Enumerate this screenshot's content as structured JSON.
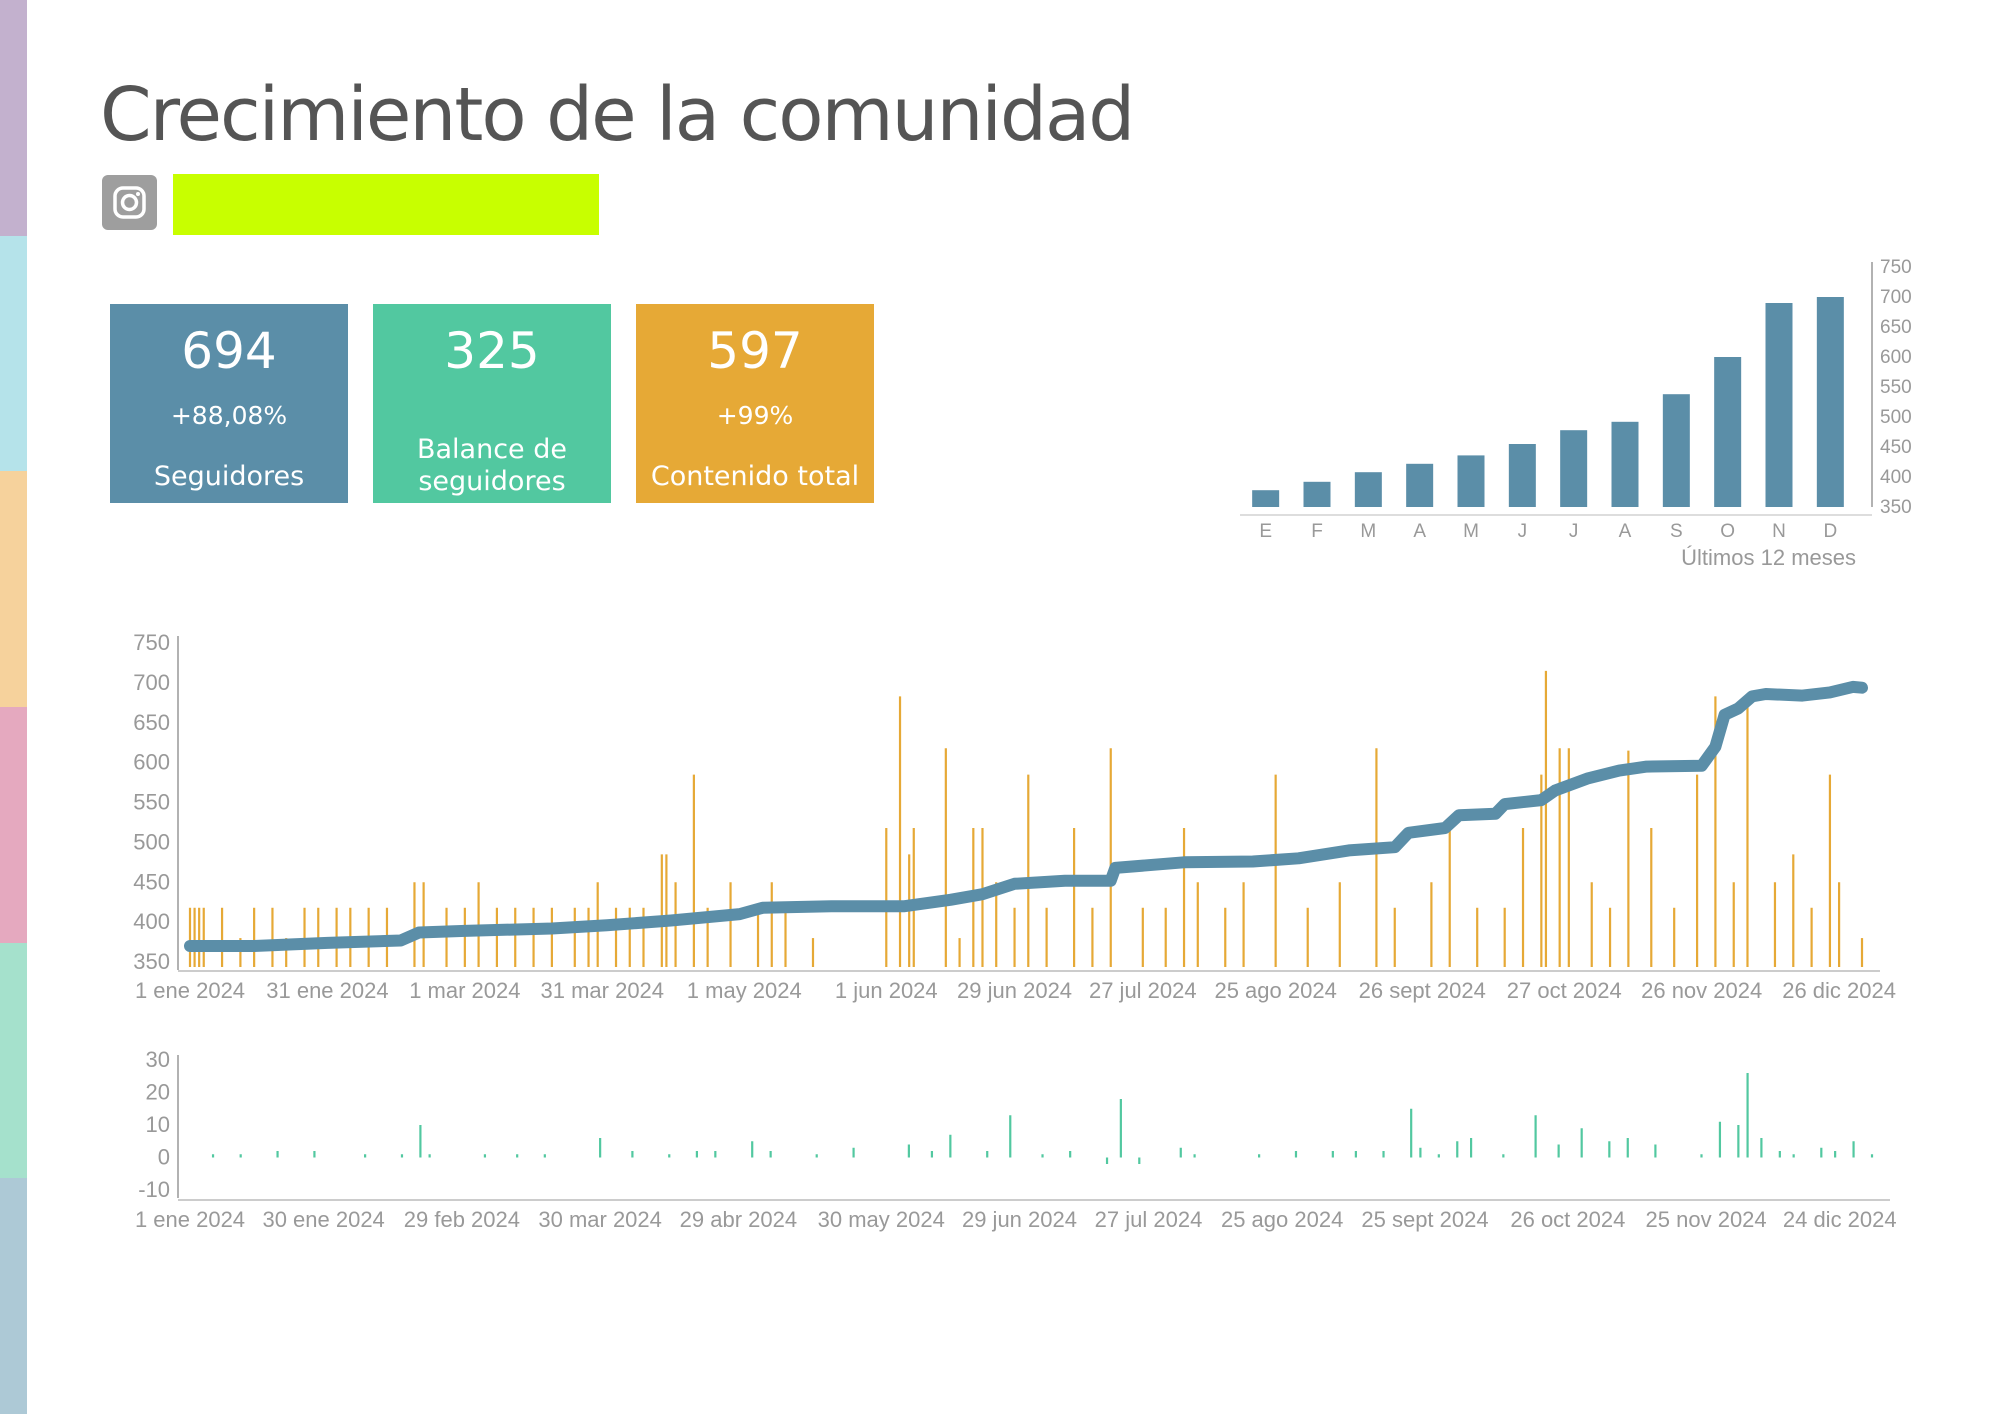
{
  "title": "Crecimiento de la comunidad",
  "network_icon": "instagram-icon",
  "colors": {
    "stripes": [
      "#c3b1ce",
      "#b5e3ea",
      "#f6d29c",
      "#e5a9bf",
      "#a5e1cc",
      "#adc9d6"
    ],
    "name_bar": "#c8ff00",
    "followers": "#5b8ea8",
    "balance": "#52c8a0",
    "content": "#e6a936",
    "axis_text": "#999999"
  },
  "kpis": [
    {
      "value": "694",
      "change": "+88,08%",
      "label": "Seguidores",
      "color": "#5b8ea8"
    },
    {
      "value": "325",
      "change": "",
      "label": "Balance de seguidores",
      "color": "#52c8a0"
    },
    {
      "value": "597",
      "change": "+99%",
      "label": "Contenido total",
      "color": "#e6a936"
    }
  ],
  "chart_data": [
    {
      "type": "bar",
      "categories": [
        "E",
        "F",
        "M",
        "A",
        "M",
        "J",
        "J",
        "A",
        "S",
        "O",
        "N",
        "D"
      ],
      "values": [
        378,
        392,
        408,
        422,
        436,
        455,
        478,
        492,
        538,
        600,
        690,
        700
      ],
      "xlabel": "Últimos 12 meses",
      "ylim": [
        350,
        750
      ],
      "yticks": [
        350,
        400,
        450,
        500,
        550,
        600,
        650,
        700,
        750
      ],
      "color": "#5b8ea8"
    },
    {
      "type": "line",
      "xlim": [
        "2024-01-01",
        "2024-12-31"
      ],
      "ylim": [
        350,
        750
      ],
      "yticks": [
        350,
        400,
        450,
        500,
        550,
        600,
        650,
        700,
        750
      ],
      "xticks": [
        {
          "date": "2024-01-01",
          "label": "1 ene 2024"
        },
        {
          "date": "2024-01-31",
          "label": "31 ene 2024"
        },
        {
          "date": "2024-03-01",
          "label": "1 mar 2024"
        },
        {
          "date": "2024-03-31",
          "label": "31 mar 2024"
        },
        {
          "date": "2024-05-01",
          "label": "1 may 2024"
        },
        {
          "date": "2024-06-01",
          "label": "1 jun 2024"
        },
        {
          "date": "2024-06-29",
          "label": "29 jun 2024"
        },
        {
          "date": "2024-07-27",
          "label": "27 jul 2024"
        },
        {
          "date": "2024-08-25",
          "label": "25 ago 2024"
        },
        {
          "date": "2024-09-26",
          "label": "26 sept 2024"
        },
        {
          "date": "2024-10-27",
          "label": "27 oct 2024"
        },
        {
          "date": "2024-11-26",
          "label": "26 nov 2024"
        },
        {
          "date": "2024-12-26",
          "label": "26 dic 2024"
        }
      ],
      "series": [
        {
          "type": "line",
          "color": "#5b8ea8",
          "points": [
            [
              "2024-01-01",
              370
            ],
            [
              "2024-01-15",
              370
            ],
            [
              "2024-01-31",
              374
            ],
            [
              "2024-02-16",
              377
            ],
            [
              "2024-02-20",
              387
            ],
            [
              "2024-03-01",
              389
            ],
            [
              "2024-03-20",
              392
            ],
            [
              "2024-04-01",
              396
            ],
            [
              "2024-04-15",
              402
            ],
            [
              "2024-04-30",
              410
            ],
            [
              "2024-05-05",
              418
            ],
            [
              "2024-05-20",
              420
            ],
            [
              "2024-06-01",
              420
            ],
            [
              "2024-06-05",
              420
            ],
            [
              "2024-06-15",
              428
            ],
            [
              "2024-06-22",
              435
            ],
            [
              "2024-06-29",
              448
            ],
            [
              "2024-07-10",
              452
            ],
            [
              "2024-07-20",
              452
            ],
            [
              "2024-07-21",
              468
            ],
            [
              "2024-08-05",
              475
            ],
            [
              "2024-08-20",
              476
            ],
            [
              "2024-08-30",
              480
            ],
            [
              "2024-09-10",
              490
            ],
            [
              "2024-09-20",
              494
            ],
            [
              "2024-09-23",
              512
            ],
            [
              "2024-10-01",
              518
            ],
            [
              "2024-10-04",
              534
            ],
            [
              "2024-10-12",
              536
            ],
            [
              "2024-10-14",
              548
            ],
            [
              "2024-10-22",
              553
            ],
            [
              "2024-10-25",
              565
            ],
            [
              "2024-11-01",
              580
            ],
            [
              "2024-11-08",
              590
            ],
            [
              "2024-11-14",
              595
            ],
            [
              "2024-11-26",
              596
            ],
            [
              "2024-11-29",
              620
            ],
            [
              "2024-12-01",
              660
            ],
            [
              "2024-12-04",
              668
            ],
            [
              "2024-12-07",
              683
            ],
            [
              "2024-12-10",
              686
            ],
            [
              "2024-12-18",
              684
            ],
            [
              "2024-12-24",
              688
            ],
            [
              "2024-12-29",
              695
            ],
            [
              "2024-12-31",
              694
            ]
          ]
        },
        {
          "type": "bar",
          "color": "#e6a936",
          "points": [
            [
              "2024-01-01",
              418
            ],
            [
              "2024-01-02",
              418
            ],
            [
              "2024-01-03",
              418
            ],
            [
              "2024-01-04",
              418
            ],
            [
              "2024-01-08",
              418
            ],
            [
              "2024-01-12",
              380
            ],
            [
              "2024-01-15",
              418
            ],
            [
              "2024-01-19",
              418
            ],
            [
              "2024-01-22",
              380
            ],
            [
              "2024-01-26",
              418
            ],
            [
              "2024-01-29",
              418
            ],
            [
              "2024-02-02",
              418
            ],
            [
              "2024-02-05",
              418
            ],
            [
              "2024-02-09",
              418
            ],
            [
              "2024-02-13",
              418
            ],
            [
              "2024-02-19",
              450
            ],
            [
              "2024-02-21",
              450
            ],
            [
              "2024-02-26",
              418
            ],
            [
              "2024-03-01",
              418
            ],
            [
              "2024-03-04",
              450
            ],
            [
              "2024-03-08",
              418
            ],
            [
              "2024-03-12",
              418
            ],
            [
              "2024-03-16",
              418
            ],
            [
              "2024-03-20",
              418
            ],
            [
              "2024-03-25",
              418
            ],
            [
              "2024-03-28",
              418
            ],
            [
              "2024-03-30",
              450
            ],
            [
              "2024-04-03",
              418
            ],
            [
              "2024-04-06",
              418
            ],
            [
              "2024-04-09",
              418
            ],
            [
              "2024-04-13",
              485
            ],
            [
              "2024-04-14",
              485
            ],
            [
              "2024-04-16",
              450
            ],
            [
              "2024-04-20",
              585
            ],
            [
              "2024-04-23",
              418
            ],
            [
              "2024-04-28",
              450
            ],
            [
              "2024-05-04",
              418
            ],
            [
              "2024-05-07",
              450
            ],
            [
              "2024-05-10",
              418
            ],
            [
              "2024-05-16",
              380
            ],
            [
              "2024-06-01",
              518
            ],
            [
              "2024-06-04",
              683
            ],
            [
              "2024-06-06",
              485
            ],
            [
              "2024-06-07",
              518
            ],
            [
              "2024-06-14",
              618
            ],
            [
              "2024-06-17",
              380
            ],
            [
              "2024-06-20",
              518
            ],
            [
              "2024-06-22",
              518
            ],
            [
              "2024-06-25",
              450
            ],
            [
              "2024-06-29",
              418
            ],
            [
              "2024-07-02",
              585
            ],
            [
              "2024-07-06",
              418
            ],
            [
              "2024-07-12",
              518
            ],
            [
              "2024-07-16",
              418
            ],
            [
              "2024-07-20",
              618
            ],
            [
              "2024-07-27",
              418
            ],
            [
              "2024-08-01",
              418
            ],
            [
              "2024-08-05",
              518
            ],
            [
              "2024-08-08",
              450
            ],
            [
              "2024-08-14",
              418
            ],
            [
              "2024-08-18",
              450
            ],
            [
              "2024-08-25",
              585
            ],
            [
              "2024-09-01",
              418
            ],
            [
              "2024-09-08",
              450
            ],
            [
              "2024-09-16",
              618
            ],
            [
              "2024-09-20",
              418
            ],
            [
              "2024-09-28",
              450
            ],
            [
              "2024-10-02",
              518
            ],
            [
              "2024-10-08",
              418
            ],
            [
              "2024-10-14",
              418
            ],
            [
              "2024-10-18",
              518
            ],
            [
              "2024-10-22",
              585
            ],
            [
              "2024-10-23",
              715
            ],
            [
              "2024-10-26",
              618
            ],
            [
              "2024-10-28",
              618
            ],
            [
              "2024-11-02",
              450
            ],
            [
              "2024-11-06",
              418
            ],
            [
              "2024-11-10",
              615
            ],
            [
              "2024-11-15",
              518
            ],
            [
              "2024-11-20",
              418
            ],
            [
              "2024-11-25",
              585
            ],
            [
              "2024-11-29",
              683
            ],
            [
              "2024-12-03",
              450
            ],
            [
              "2024-12-06",
              678
            ],
            [
              "2024-12-12",
              450
            ],
            [
              "2024-12-16",
              485
            ],
            [
              "2024-12-20",
              418
            ],
            [
              "2024-12-24",
              585
            ],
            [
              "2024-12-26",
              450
            ],
            [
              "2024-12-31",
              380
            ]
          ]
        }
      ]
    },
    {
      "type": "bar",
      "xlim": [
        "2024-01-01",
        "2024-12-31"
      ],
      "ylim": [
        -10,
        30
      ],
      "yticks": [
        -10,
        0,
        10,
        20,
        30
      ],
      "xticks": [
        {
          "date": "2024-01-01",
          "label": "1 ene 2024"
        },
        {
          "date": "2024-01-30",
          "label": "30 ene 2024"
        },
        {
          "date": "2024-02-29",
          "label": "29 feb 2024"
        },
        {
          "date": "2024-03-30",
          "label": "30 mar 2024"
        },
        {
          "date": "2024-04-29",
          "label": "29 abr 2024"
        },
        {
          "date": "2024-05-30",
          "label": "30 may 2024"
        },
        {
          "date": "2024-06-29",
          "label": "29 jun 2024"
        },
        {
          "date": "2024-07-27",
          "label": "27 jul 2024"
        },
        {
          "date": "2024-08-25",
          "label": "25 ago 2024"
        },
        {
          "date": "2024-09-25",
          "label": "25 sept 2024"
        },
        {
          "date": "2024-10-26",
          "label": "26 oct 2024"
        },
        {
          "date": "2024-11-25",
          "label": "25 nov 2024"
        },
        {
          "date": "2024-12-24",
          "label": "24 dic 2024"
        }
      ],
      "color": "#52c8a0",
      "points": [
        [
          "2024-01-06",
          1
        ],
        [
          "2024-01-12",
          1
        ],
        [
          "2024-01-20",
          2
        ],
        [
          "2024-01-28",
          2
        ],
        [
          "2024-02-08",
          1
        ],
        [
          "2024-02-16",
          1
        ],
        [
          "2024-02-20",
          10
        ],
        [
          "2024-02-22",
          1
        ],
        [
          "2024-03-05",
          1
        ],
        [
          "2024-03-12",
          1
        ],
        [
          "2024-03-18",
          1
        ],
        [
          "2024-03-30",
          6
        ],
        [
          "2024-04-06",
          2
        ],
        [
          "2024-04-14",
          1
        ],
        [
          "2024-04-20",
          2
        ],
        [
          "2024-04-24",
          2
        ],
        [
          "2024-05-02",
          5
        ],
        [
          "2024-05-06",
          2
        ],
        [
          "2024-05-16",
          1
        ],
        [
          "2024-05-24",
          3
        ],
        [
          "2024-06-05",
          4
        ],
        [
          "2024-06-10",
          2
        ],
        [
          "2024-06-14",
          7
        ],
        [
          "2024-06-22",
          2
        ],
        [
          "2024-06-27",
          13
        ],
        [
          "2024-07-04",
          1
        ],
        [
          "2024-07-10",
          2
        ],
        [
          "2024-07-18",
          -2
        ],
        [
          "2024-07-21",
          18
        ],
        [
          "2024-07-25",
          -2
        ],
        [
          "2024-08-03",
          3
        ],
        [
          "2024-08-06",
          1
        ],
        [
          "2024-08-20",
          1
        ],
        [
          "2024-08-28",
          2
        ],
        [
          "2024-09-05",
          2
        ],
        [
          "2024-09-10",
          2
        ],
        [
          "2024-09-16",
          2
        ],
        [
          "2024-09-22",
          15
        ],
        [
          "2024-09-24",
          3
        ],
        [
          "2024-09-28",
          1
        ],
        [
          "2024-10-02",
          5
        ],
        [
          "2024-10-05",
          6
        ],
        [
          "2024-10-12",
          1
        ],
        [
          "2024-10-19",
          13
        ],
        [
          "2024-10-24",
          4
        ],
        [
          "2024-10-29",
          9
        ],
        [
          "2024-11-04",
          5
        ],
        [
          "2024-11-08",
          6
        ],
        [
          "2024-11-14",
          4
        ],
        [
          "2024-11-24",
          1
        ],
        [
          "2024-11-28",
          11
        ],
        [
          "2024-12-02",
          10
        ],
        [
          "2024-12-04",
          26
        ],
        [
          "2024-12-07",
          6
        ],
        [
          "2024-12-11",
          2
        ],
        [
          "2024-12-14",
          1
        ],
        [
          "2024-12-20",
          3
        ],
        [
          "2024-12-23",
          2
        ],
        [
          "2024-12-27",
          5
        ],
        [
          "2024-12-31",
          1
        ]
      ]
    }
  ]
}
